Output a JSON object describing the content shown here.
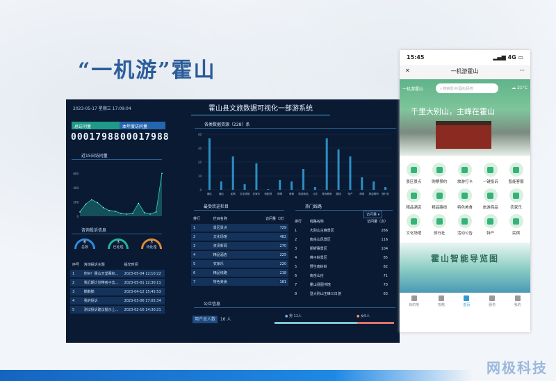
{
  "slide": {
    "title": "“一机游”霍山",
    "logo": "网极科技"
  },
  "dashboard": {
    "datetime": "2023-05-17  星期三  17:09:04",
    "system_title": "霍山县文旅数据可视化一部游系统",
    "total_visits_label": "总访问量",
    "total_visits": "00017988",
    "year_visits_label": "本年度访问量",
    "year_visits": "00017988",
    "recent_label": "近15日访问量",
    "recent_visits": {
      "type": "area",
      "values": [
        60,
        170,
        230,
        190,
        120,
        80,
        70,
        40,
        30,
        40,
        180,
        50,
        30,
        60,
        600
      ],
      "ylim": [
        0,
        700
      ],
      "yticks": [
        0,
        200,
        400,
        600
      ],
      "color": "#2bb5a0"
    },
    "complaints_label": "咨询投诉信息",
    "gauges": [
      {
        "value": "6",
        "label": "总数",
        "color": "#2e8ce0"
      },
      {
        "value": "3",
        "label": "已处理",
        "color": "#22b59a"
      },
      {
        "value": "3",
        "label": "待处理",
        "color": "#e08a3a"
      }
    ],
    "complaints_headers": [
      "序号",
      "咨询投诉主题",
      "提交时间"
    ],
    "complaints": [
      [
        "1",
        "你好！霍山天堂寨标...",
        "2023-05-04 12:10:22"
      ],
      [
        "2",
        "我近期计划带孩子去...",
        "2023-05-01 12:30:11"
      ],
      [
        "3",
        "鹅鹅鹅",
        "2023-04-12 15:45:53"
      ],
      [
        "4",
        "我的投诉",
        "2023-03-06 17:05:34"
      ],
      [
        "5",
        "测试投诉建议提示上...",
        "2023-02-16 14:30:21"
      ]
    ],
    "resources_label": "各类数据资源（228）条",
    "chart_data": {
      "type": "bar",
      "categories": [
        "景区",
        "酒店",
        "民宿",
        "文化场馆",
        "农家乐",
        "电影院",
        "购物",
        "美食",
        "旅游商品",
        "公告",
        "特色美食",
        "路线",
        "特产",
        "商家",
        "旅游厕所",
        "旅行社"
      ],
      "values": [
        37,
        6,
        24,
        4,
        19,
        0.5,
        7,
        6,
        15,
        2,
        37,
        29,
        24,
        9,
        6,
        2
      ],
      "ylim": [
        0,
        40
      ],
      "yticks": [
        0,
        10,
        20,
        30,
        40
      ],
      "color": "#2a8fc4"
    },
    "popular_label": "最受欢迎栏目",
    "popular_headers": [
      "排行",
      "栏目名称",
      "访问量（次）"
    ],
    "popular": [
      [
        "1",
        "景区景点",
        "729"
      ],
      [
        "2",
        "文化场馆",
        "482"
      ],
      [
        "3",
        "资讯新闻",
        "270"
      ],
      [
        "4",
        "精品酒店",
        "225"
      ],
      [
        "5",
        "农家乐",
        "220"
      ],
      [
        "6",
        "精品线路",
        "218"
      ],
      [
        "7",
        "特色美食",
        "181"
      ]
    ],
    "routes_label": "热门线路",
    "routes_sort": "访问量",
    "routes_headers": [
      "排行",
      "线路名称",
      "访问量（次）"
    ],
    "routes": [
      [
        "1",
        "大别山主峰景区",
        "266"
      ],
      [
        "2",
        "南岳山风景区",
        "116"
      ],
      [
        "3",
        "铜锣寨景区",
        "104"
      ],
      [
        "4",
        "佛子岭景区",
        "85"
      ],
      [
        "5",
        "野生南岭岭",
        "82"
      ],
      [
        "6",
        "南岳山庄",
        "71"
      ],
      [
        "7",
        "霍山县图书馆",
        "70"
      ],
      [
        "8",
        "登大别山主峰三日游",
        "63"
      ]
    ],
    "public_label": "公众信息",
    "users_label": "用户总人数",
    "users": "16",
    "users_unit": "人",
    "male": "男 11人",
    "female": "女5人",
    "male_ratio": 0.69
  },
  "phone": {
    "time": "15:45",
    "signal": "4G",
    "nav_title": "一机游霍山",
    "app_name": "一机游霍山",
    "search_placeholder": "搜索景点/酒店/民宿",
    "weather": "21°C",
    "slogan": "千里大别山，主峰在霍山",
    "icons": [
      "景区景点",
      "购票预约",
      "旅游打卡",
      "一键投诉",
      "智能客服",
      "精品酒店",
      "精品路线",
      "特色美食",
      "旅游商品",
      "农家乐",
      "文化场馆",
      "旅行社",
      "活动公告",
      "特产",
      "民宿"
    ],
    "guide": "霍山智能导览图",
    "tabs": [
      "目的地",
      "攻略",
      "首页",
      "服务",
      "我的"
    ]
  }
}
